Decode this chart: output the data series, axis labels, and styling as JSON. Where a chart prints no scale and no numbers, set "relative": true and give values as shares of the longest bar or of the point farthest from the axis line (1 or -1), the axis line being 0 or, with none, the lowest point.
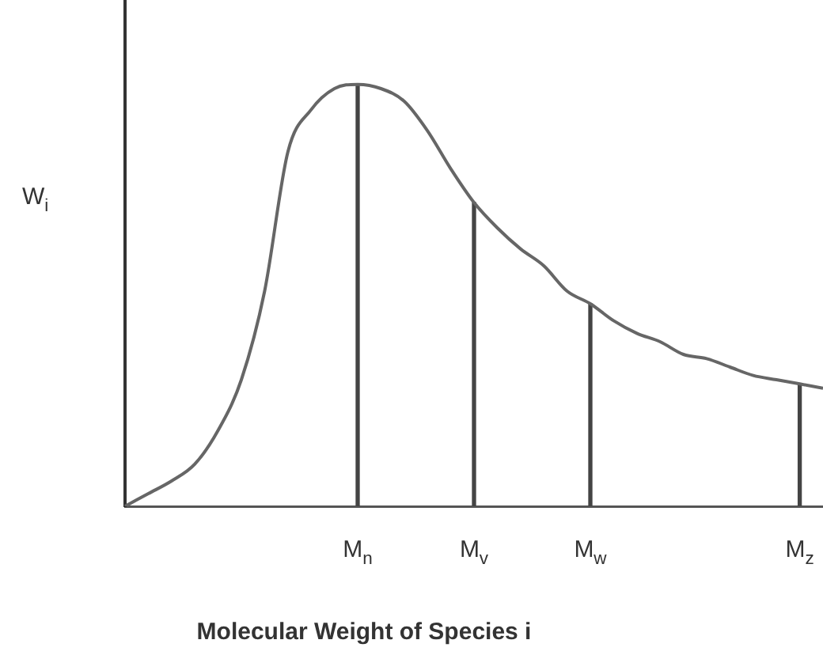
{
  "chart_data": {
    "type": "line",
    "relative": true,
    "ylabel": "W$_{i}$",
    "xlabel": "Molecular Weight of Species i",
    "categories": [
      null,
      null,
      null,
      null,
      null,
      null,
      null,
      null,
      null,
      null,
      "M$_{n}$",
      null,
      null,
      null,
      null,
      "M$_{v}$",
      null,
      null,
      null,
      null,
      "M$_{w}$",
      null,
      null,
      null,
      null,
      null,
      null,
      null,
      null,
      "M$_{z}$",
      null
    ],
    "series": [
      {
        "color": "#666666",
        "values": [
          0,
          0.03,
          0.06,
          0.1,
          0.18,
          0.3,
          0.51,
          0.84,
          0.94,
          0.99,
          1,
          0.99,
          0.96,
          0.89,
          0.8,
          0.72,
          0.66,
          0.61,
          0.57,
          0.51,
          0.48,
          0.44,
          0.41,
          0.39,
          0.36,
          0.35,
          0.33,
          0.31,
          0.3,
          0.29,
          0.28
        ]
      },
      {
        "type": "bar",
        "color": "#444444",
        "values": [
          null,
          null,
          null,
          null,
          null,
          null,
          null,
          null,
          null,
          null,
          1,
          null,
          null,
          null,
          null,
          0.72,
          null,
          null,
          null,
          null,
          0.48,
          null,
          null,
          null,
          null,
          null,
          null,
          null,
          null,
          0.29,
          null
        ]
      }
    ],
    "grid": false,
    "legend": false,
    "marker": "none",
    "line_style": "solid"
  }
}
